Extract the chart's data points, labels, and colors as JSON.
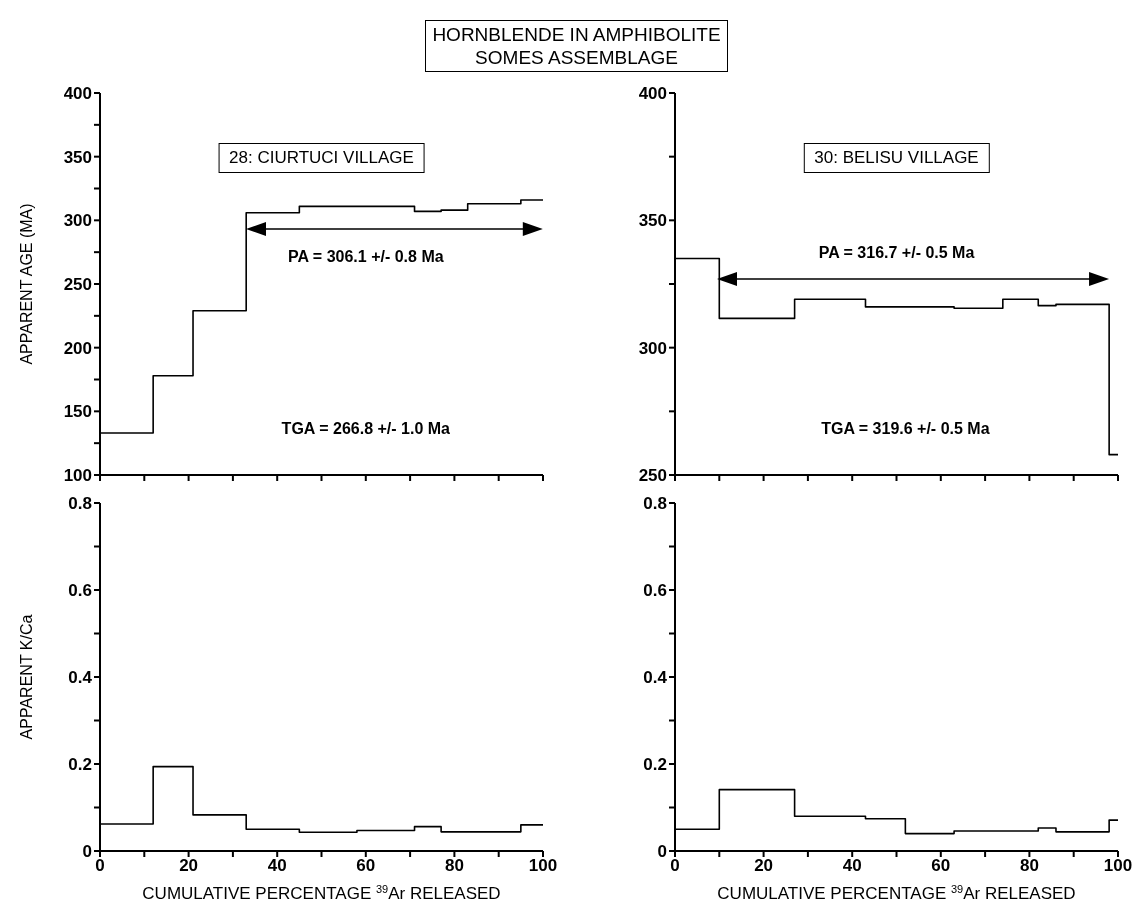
{
  "chart_data": [
    {
      "type": "step",
      "title": "HORNBLENDE IN AMPHIBOLITE\nSOMES ASSEMBLAGE",
      "ylabel": "APPARENT AGE (MA)",
      "tick_labels": "y",
      "xlim": [
        0,
        100
      ],
      "xticks": [
        0,
        {
          "value": 10,
          "label": null
        },
        {
          "value": 20,
          "label": null
        },
        {
          "value": 30,
          "label": null
        },
        {
          "value": 40,
          "label": null
        },
        {
          "value": 50,
          "label": null
        },
        {
          "value": 60,
          "label": null
        },
        {
          "value": 70,
          "label": null
        },
        {
          "value": 80,
          "label": null
        },
        {
          "value": 90,
          "label": null
        },
        {
          "value": 100,
          "label": null
        }
      ],
      "ylim": [
        100,
        400
      ],
      "yticks": [
        100,
        {
          "value": 125,
          "label": null
        },
        150,
        {
          "value": 175,
          "label": null
        },
        200,
        {
          "value": 225,
          "label": null
        },
        250,
        {
          "value": 275,
          "label": null
        },
        300,
        {
          "value": 325,
          "label": null
        },
        350,
        {
          "value": 375,
          "label": null
        },
        400
      ],
      "x": [
        0,
        12,
        21,
        33,
        45,
        58,
        71,
        77,
        83,
        95,
        100
      ],
      "series": [
        {
          "color": "#000000",
          "values": [
            133,
            178,
            229,
            306,
            311,
            311,
            307,
            308,
            313,
            316,
            316
          ]
        }
      ],
      "annotations": [
        "28: CIURTUCI VILLAGE",
        "PA = 306.1 +/- 0.8 Ma",
        "TGA = 266.8 +/- 1.0 Ma"
      ]
    },
    {
      "type": "step",
      "tick_labels": "y",
      "xlim": [
        0,
        100
      ],
      "xticks": [
        0,
        {
          "value": 10,
          "label": null
        },
        {
          "value": 20,
          "label": null
        },
        {
          "value": 30,
          "label": null
        },
        {
          "value": 40,
          "label": null
        },
        {
          "value": 50,
          "label": null
        },
        {
          "value": 60,
          "label": null
        },
        {
          "value": 70,
          "label": null
        },
        {
          "value": 80,
          "label": null
        },
        {
          "value": 90,
          "label": null
        },
        {
          "value": 100,
          "label": null
        }
      ],
      "ylim": [
        250,
        400
      ],
      "yticks": [
        250,
        {
          "value": 275,
          "label": null
        },
        300,
        {
          "value": 325,
          "label": null
        },
        350,
        {
          "value": 375,
          "label": null
        },
        400
      ],
      "x": [
        0,
        10,
        27,
        43,
        52,
        63,
        74,
        82,
        86,
        98,
        100
      ],
      "series": [
        {
          "color": "#000000",
          "values": [
            335,
            311.5,
            319,
            316,
            316,
            315.5,
            319,
            316.5,
            317,
            258,
            258
          ]
        }
      ],
      "annotations": [
        "30: BELISU VILLAGE",
        "PA = 316.7 +/- 0.5 Ma",
        "TGA = 319.6 +/- 0.5 Ma"
      ]
    },
    {
      "type": "step",
      "ylabel": "APPARENT K/Ca",
      "xlabel": "CUMULATIVE PERCENTAGE $^{39}$Ar RELEASED",
      "xlim": [
        0,
        100
      ],
      "xticks": [
        0,
        {
          "value": 10,
          "label": null
        },
        20,
        {
          "value": 30,
          "label": null
        },
        40,
        {
          "value": 50,
          "label": null
        },
        60,
        {
          "value": 70,
          "label": null
        },
        80,
        {
          "value": 90,
          "label": null
        },
        100
      ],
      "ylim": [
        0,
        0.8
      ],
      "yticks": [
        0,
        {
          "value": 0.1,
          "label": null
        },
        0.2,
        {
          "value": 0.3,
          "label": null
        },
        0.4,
        {
          "value": 0.5,
          "label": null
        },
        0.6,
        {
          "value": 0.7,
          "label": null
        },
        0.8
      ],
      "x": [
        0,
        12,
        21,
        33,
        45,
        58,
        71,
        77,
        83,
        95,
        100
      ],
      "series": [
        {
          "color": "#000000",
          "values": [
            0.062,
            0.194,
            0.083,
            0.05,
            0.043,
            0.047,
            0.056,
            0.044,
            0.044,
            0.06,
            0.06
          ]
        }
      ]
    },
    {
      "type": "step",
      "xlabel": "CUMULATIVE PERCENTAGE $^{39}$Ar RELEASED",
      "xlim": [
        0,
        100
      ],
      "xticks": [
        0,
        {
          "value": 10,
          "label": null
        },
        20,
        {
          "value": 30,
          "label": null
        },
        40,
        {
          "value": 50,
          "label": null
        },
        60,
        {
          "value": 70,
          "label": null
        },
        80,
        {
          "value": 90,
          "label": null
        },
        100
      ],
      "ylim": [
        0,
        0.8
      ],
      "yticks": [
        0,
        {
          "value": 0.1,
          "label": null
        },
        0.2,
        {
          "value": 0.3,
          "label": null
        },
        0.4,
        {
          "value": 0.5,
          "label": null
        },
        0.6,
        {
          "value": 0.7,
          "label": null
        },
        0.8
      ],
      "x": [
        0,
        10,
        27,
        43,
        52,
        63,
        74,
        82,
        86,
        98,
        100
      ],
      "series": [
        {
          "color": "#000000",
          "values": [
            0.05,
            0.141,
            0.08,
            0.074,
            0.04,
            0.046,
            0.046,
            0.053,
            0.044,
            0.071,
            0.071
          ]
        }
      ]
    }
  ]
}
